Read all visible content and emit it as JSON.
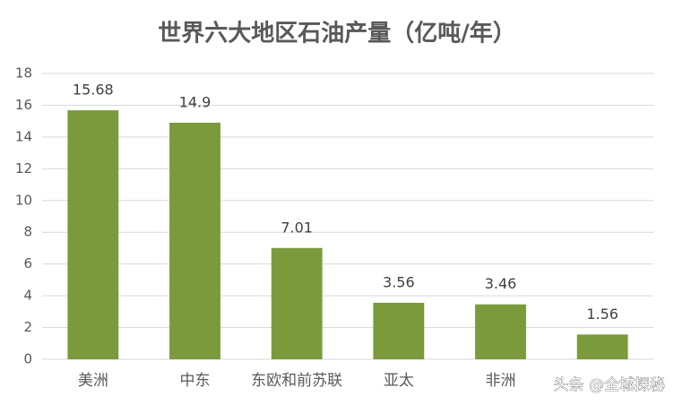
{
  "chart_data": {
    "type": "bar",
    "title": "世界六大地区石油产量（亿吨/年）",
    "categories": [
      "美洲",
      "中东",
      "东欧和前苏联",
      "亚太",
      "非洲",
      null
    ],
    "values": [
      15.68,
      14.9,
      7.01,
      3.56,
      3.46,
      1.56
    ],
    "color": "#7a9a3c",
    "ylim": [
      0,
      18
    ],
    "yticks": [
      0,
      2,
      4,
      6,
      8,
      10,
      12,
      14,
      16,
      18
    ],
    "grid": true,
    "watermark": "头条 @全城探秘"
  }
}
